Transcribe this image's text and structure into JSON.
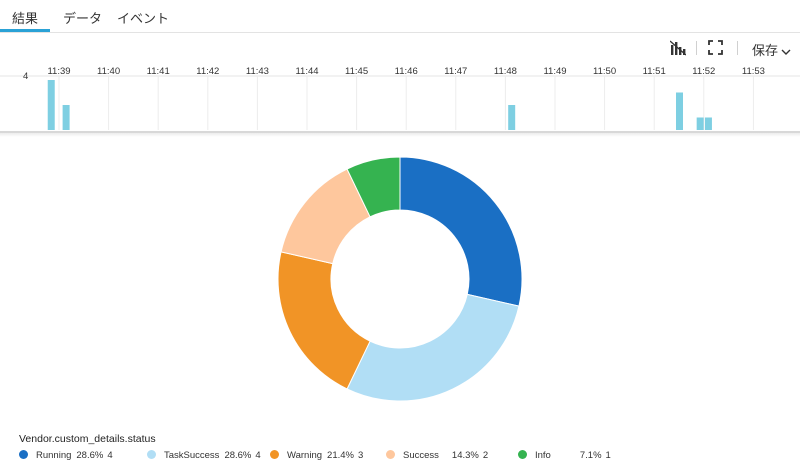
{
  "tabs": [
    {
      "label": "結果",
      "active": true
    },
    {
      "label": "データ",
      "active": false
    },
    {
      "label": "イベント",
      "active": false
    }
  ],
  "toolbar": {
    "chart_icon": "bar-chart-icon",
    "fullscreen_icon": "fullscreen-icon",
    "save_label": "保存",
    "save_icon": "chevron-down-icon"
  },
  "timeline": {
    "y_max_label": "4",
    "time_labels": [
      "11:39",
      "11:40",
      "11:41",
      "11:42",
      "11:43",
      "11:44",
      "11:45",
      "11:46",
      "11:47",
      "11:48",
      "11:49",
      "11:50",
      "11:51",
      "11:52",
      "11:53"
    ],
    "bar_color": "#7ecfe2",
    "ymax": 4,
    "bars": [
      {
        "t": "11:38:50",
        "count": 4
      },
      {
        "t": "11:39:08",
        "count": 2
      },
      {
        "t": "11:48:07",
        "count": 2
      },
      {
        "t": "11:51:30",
        "count": 3
      },
      {
        "t": "11:51:55",
        "count": 1
      },
      {
        "t": "11:52:05",
        "count": 1
      }
    ]
  },
  "chart_data": {
    "type": "pie",
    "variant": "donut",
    "field": "Vendor.custom_details.status",
    "slices": [
      {
        "label": "Running",
        "percent": "28.6%",
        "count": 4,
        "value": 4,
        "color": "#1a6fc4"
      },
      {
        "label": "TaskSuccess",
        "percent": "28.6%",
        "count": 4,
        "value": 4,
        "color": "#b1def5"
      },
      {
        "label": "Warning",
        "percent": "21.4%",
        "count": 3,
        "value": 3,
        "color": "#f19426"
      },
      {
        "label": "Success",
        "percent": "14.3%",
        "count": 2,
        "value": 2,
        "color": "#fec79d"
      },
      {
        "label": "Info",
        "percent": "7.1%",
        "count": 1,
        "value": 1,
        "color": "#35b350"
      }
    ]
  }
}
